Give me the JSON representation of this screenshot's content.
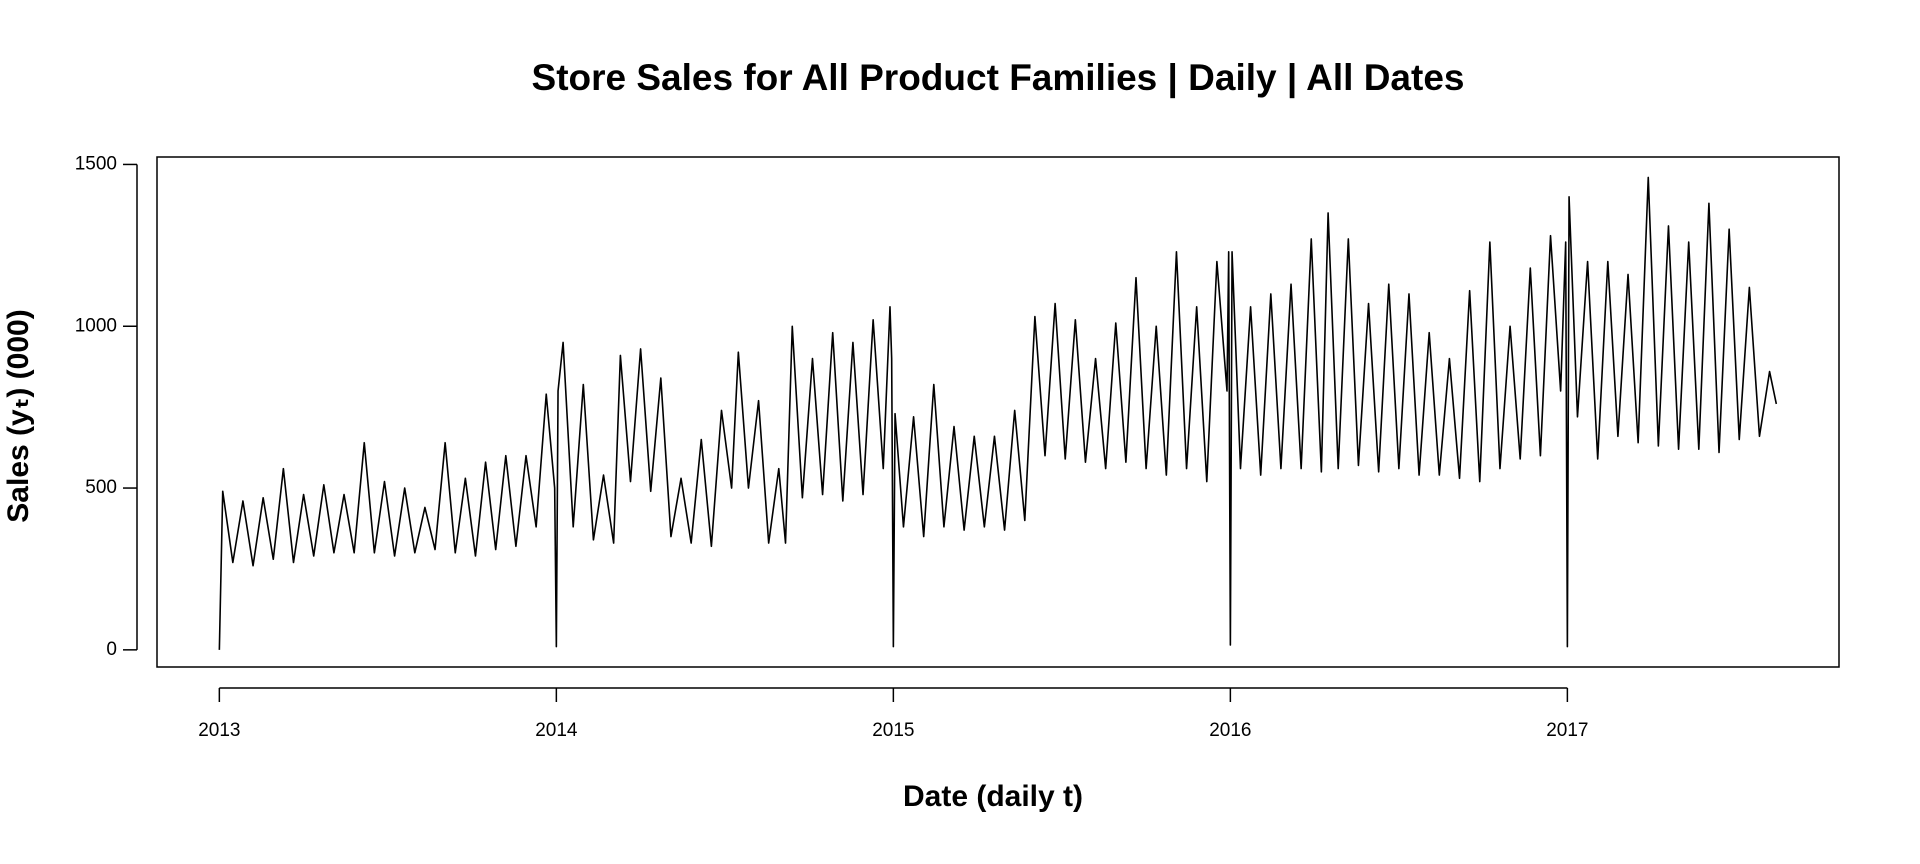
{
  "chart_data": {
    "type": "line",
    "title": "Store Sales for All Product Families  |  Daily  |  All Dates",
    "x_label": "Date (daily t)",
    "y_label": "Sales (yₜ) (000)",
    "color": "#000000",
    "xlim": [
      2012.815,
      2017.806
    ],
    "ylim": [
      -53,
      1523
    ],
    "xticks": [
      2013,
      2014,
      2015,
      2016,
      2017
    ],
    "yticks": [
      0,
      500,
      1000,
      1500
    ],
    "x": [
      2013.0,
      2013.01,
      2013.04,
      2013.07,
      2013.1,
      2013.13,
      2013.16,
      2013.19,
      2013.22,
      2013.25,
      2013.28,
      2013.31,
      2013.34,
      2013.37,
      2013.4,
      2013.43,
      2013.46,
      2013.49,
      2013.52,
      2013.55,
      2013.58,
      2013.61,
      2013.64,
      2013.67,
      2013.7,
      2013.73,
      2013.76,
      2013.79,
      2013.82,
      2013.85,
      2013.88,
      2013.91,
      2013.94,
      2013.97,
      2013.995,
      2014.0,
      2014.005,
      2014.02,
      2014.05,
      2014.08,
      2014.11,
      2014.14,
      2014.17,
      2014.19,
      2014.22,
      2014.25,
      2014.28,
      2014.31,
      2014.34,
      2014.37,
      2014.4,
      2014.43,
      2014.46,
      2014.49,
      2014.52,
      2014.54,
      2014.57,
      2014.6,
      2014.63,
      2014.66,
      2014.68,
      2014.7,
      2014.73,
      2014.76,
      2014.79,
      2014.82,
      2014.85,
      2014.88,
      2014.91,
      2014.94,
      2014.97,
      2014.99,
      2014.995,
      2015.0,
      2015.005,
      2015.03,
      2015.06,
      2015.09,
      2015.12,
      2015.15,
      2015.18,
      2015.21,
      2015.24,
      2015.27,
      2015.3,
      2015.33,
      2015.36,
      2015.39,
      2015.42,
      2015.45,
      2015.48,
      2015.51,
      2015.54,
      2015.57,
      2015.6,
      2015.63,
      2015.66,
      2015.69,
      2015.72,
      2015.75,
      2015.78,
      2015.81,
      2015.84,
      2015.87,
      2015.9,
      2015.93,
      2015.96,
      2015.99,
      2015.995,
      2016.0,
      2016.005,
      2016.03,
      2016.06,
      2016.09,
      2016.12,
      2016.15,
      2016.18,
      2016.21,
      2016.24,
      2016.27,
      2016.29,
      2016.32,
      2016.35,
      2016.38,
      2016.41,
      2016.44,
      2016.47,
      2016.5,
      2016.53,
      2016.56,
      2016.59,
      2016.62,
      2016.65,
      2016.68,
      2016.71,
      2016.74,
      2016.77,
      2016.8,
      2016.83,
      2016.86,
      2016.89,
      2016.92,
      2016.95,
      2016.98,
      2016.995,
      2017.0,
      2017.005,
      2017.03,
      2017.06,
      2017.09,
      2017.12,
      2017.15,
      2017.18,
      2017.21,
      2017.24,
      2017.27,
      2017.3,
      2017.33,
      2017.36,
      2017.39,
      2017.42,
      2017.45,
      2017.48,
      2017.51,
      2017.54,
      2017.57,
      2017.6,
      2017.62
    ],
    "values": [
      0,
      490,
      270,
      460,
      260,
      470,
      280,
      560,
      270,
      480,
      290,
      510,
      300,
      480,
      300,
      640,
      300,
      520,
      290,
      500,
      300,
      440,
      310,
      640,
      300,
      530,
      290,
      580,
      310,
      600,
      320,
      600,
      380,
      790,
      500,
      10,
      800,
      950,
      380,
      820,
      340,
      540,
      330,
      910,
      520,
      930,
      490,
      840,
      350,
      530,
      330,
      650,
      320,
      740,
      500,
      920,
      500,
      770,
      330,
      560,
      330,
      1000,
      470,
      900,
      480,
      980,
      460,
      950,
      480,
      1020,
      560,
      1060,
      900,
      10,
      730,
      380,
      720,
      350,
      820,
      380,
      690,
      370,
      660,
      380,
      660,
      370,
      740,
      400,
      1030,
      600,
      1070,
      590,
      1020,
      580,
      900,
      560,
      1010,
      580,
      1150,
      560,
      1000,
      540,
      1230,
      560,
      1060,
      520,
      1200,
      800,
      1230,
      15,
      1230,
      560,
      1060,
      540,
      1100,
      560,
      1130,
      560,
      1270,
      550,
      1350,
      560,
      1270,
      570,
      1070,
      550,
      1130,
      560,
      1100,
      540,
      980,
      540,
      900,
      530,
      1110,
      520,
      1260,
      560,
      1000,
      590,
      1180,
      600,
      1280,
      800,
      1260,
      10,
      1400,
      720,
      1200,
      590,
      1200,
      660,
      1160,
      640,
      1460,
      630,
      1310,
      620,
      1260,
      620,
      1380,
      610,
      1300,
      650,
      1120,
      660,
      860,
      760
    ]
  }
}
